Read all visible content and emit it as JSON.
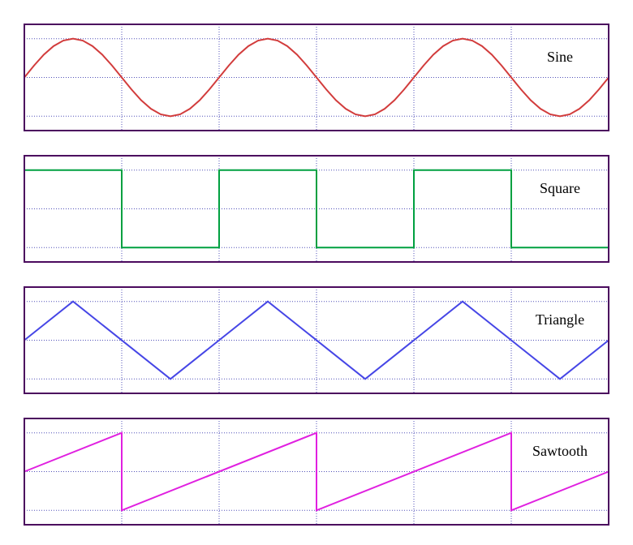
{
  "chart_data": [
    {
      "type": "line",
      "title": "Sine",
      "color": "#d23c3c",
      "grid": true,
      "xlim": [
        0,
        6
      ],
      "ylim": [
        -1.37,
        1.37
      ],
      "xticks": [
        1,
        2,
        3,
        4,
        5
      ],
      "yticks": [
        -1,
        0,
        1
      ],
      "x": [
        0,
        0.1,
        0.2,
        0.3,
        0.4,
        0.5,
        0.6,
        0.7,
        0.8,
        0.9,
        1,
        1.1,
        1.2,
        1.3,
        1.4,
        1.5,
        1.6,
        1.7,
        1.8,
        1.9,
        2,
        2.1,
        2.2,
        2.3,
        2.4,
        2.5,
        2.6,
        2.7,
        2.8,
        2.9,
        3,
        3.1,
        3.2,
        3.3,
        3.4,
        3.5,
        3.6,
        3.7,
        3.8,
        3.9,
        4,
        4.1,
        4.2,
        4.3,
        4.4,
        4.5,
        4.6,
        4.7,
        4.8,
        4.9,
        5,
        5.1,
        5.2,
        5.3,
        5.4,
        5.5,
        5.6,
        5.7,
        5.8,
        5.9,
        6
      ],
      "values": [
        0,
        0.309,
        0.588,
        0.809,
        0.951,
        1,
        0.951,
        0.809,
        0.588,
        0.309,
        0,
        -0.309,
        -0.588,
        -0.809,
        -0.951,
        -1,
        -0.951,
        -0.809,
        -0.588,
        -0.309,
        0,
        0.309,
        0.588,
        0.809,
        0.951,
        1,
        0.951,
        0.809,
        0.588,
        0.309,
        0,
        -0.309,
        -0.588,
        -0.809,
        -0.951,
        -1,
        -0.951,
        -0.809,
        -0.588,
        -0.309,
        0,
        0.309,
        0.588,
        0.809,
        0.951,
        1,
        0.951,
        0.809,
        0.588,
        0.309,
        0,
        -0.309,
        -0.588,
        -0.809,
        -0.951,
        -1,
        -0.951,
        -0.809,
        -0.588,
        -0.309,
        0
      ]
    },
    {
      "type": "line",
      "title": "Square",
      "color": "#00a040",
      "grid": true,
      "xlim": [
        0,
        6
      ],
      "ylim": [
        -1.37,
        1.37
      ],
      "xticks": [
        1,
        2,
        3,
        4,
        5
      ],
      "yticks": [
        -1,
        0,
        1
      ],
      "x": [
        0,
        1,
        1,
        2,
        2,
        3,
        3,
        4,
        4,
        5,
        5,
        6
      ],
      "values": [
        1,
        1,
        -1,
        -1,
        1,
        1,
        -1,
        -1,
        1,
        1,
        -1,
        -1
      ]
    },
    {
      "type": "line",
      "title": "Triangle",
      "color": "#4646e6",
      "grid": true,
      "xlim": [
        0,
        6
      ],
      "ylim": [
        -1.37,
        1.37
      ],
      "xticks": [
        1,
        2,
        3,
        4,
        5
      ],
      "yticks": [
        -1,
        0,
        1
      ],
      "x": [
        0,
        0.5,
        1.5,
        2.5,
        3.5,
        4.5,
        5.5,
        6
      ],
      "values": [
        0,
        1,
        -1,
        1,
        -1,
        1,
        -1,
        0
      ]
    },
    {
      "type": "line",
      "title": "Sawtooth",
      "color": "#e020e0",
      "grid": true,
      "xlim": [
        0,
        6
      ],
      "ylim": [
        -1.37,
        1.37
      ],
      "xticks": [
        1,
        2,
        3,
        4,
        5
      ],
      "yticks": [
        -1,
        0,
        1
      ],
      "x": [
        0,
        1,
        1,
        3,
        3,
        5,
        5,
        6
      ],
      "values": [
        0,
        1,
        -1,
        1,
        -1,
        1,
        -1,
        0
      ]
    }
  ]
}
